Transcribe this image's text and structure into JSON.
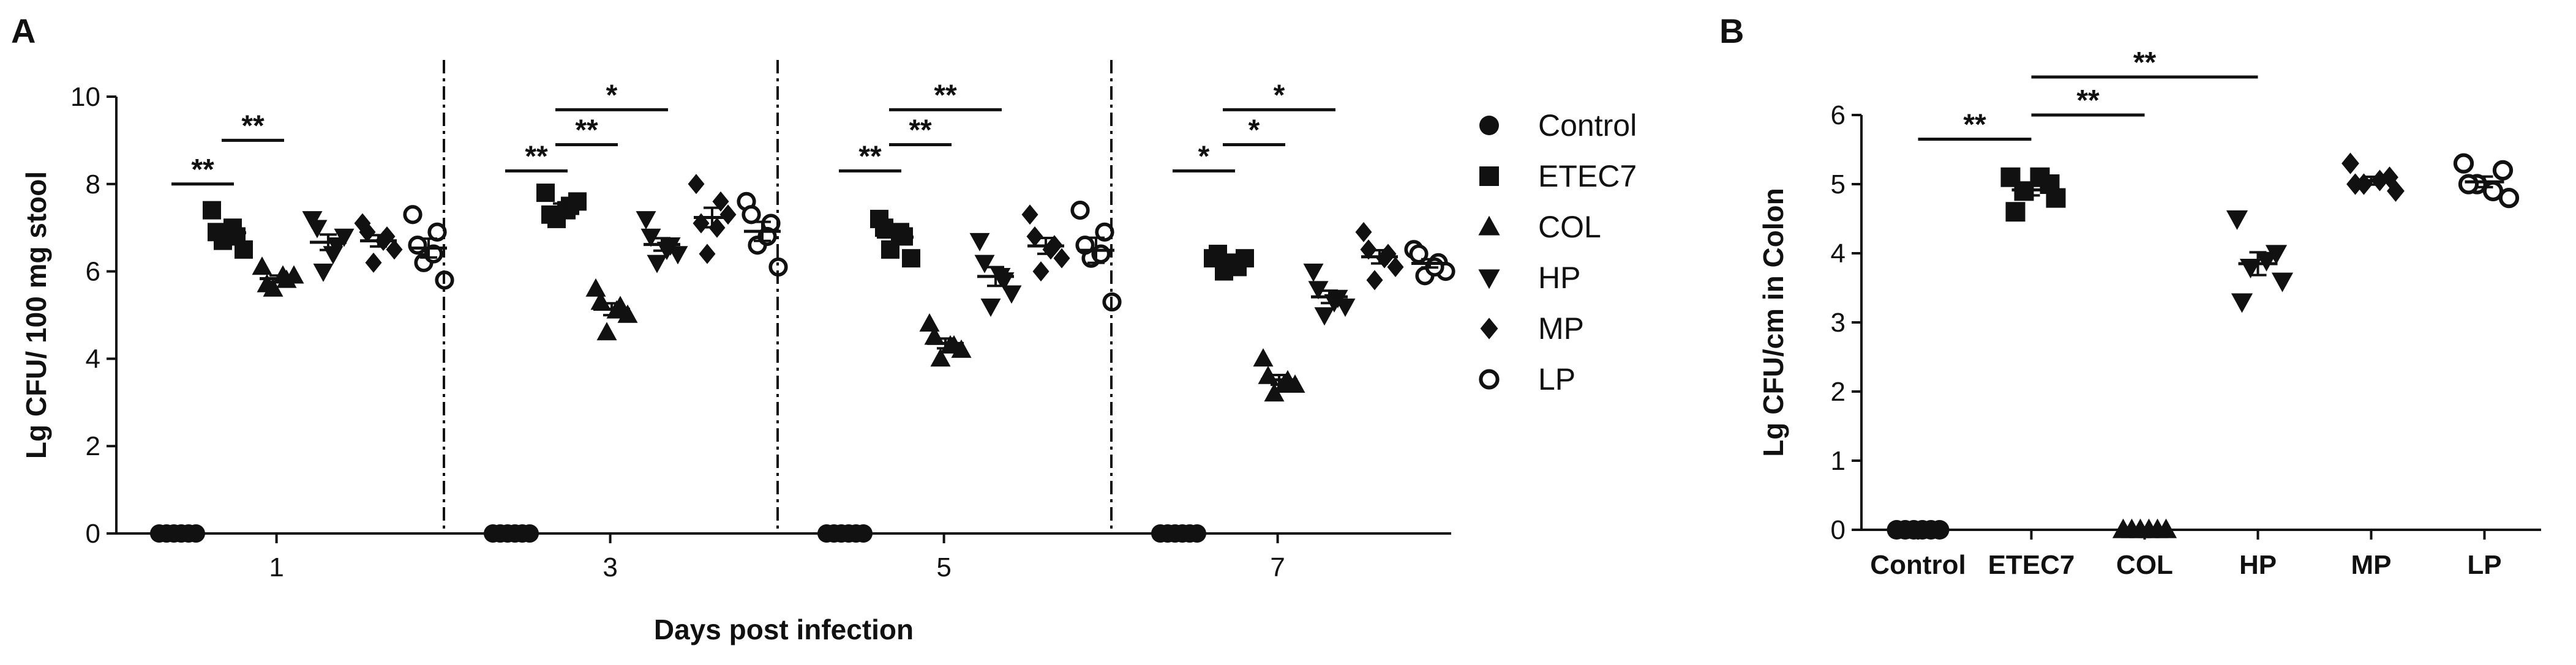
{
  "chart_data": [
    {
      "panel": "A",
      "type": "scatter",
      "xlabel": "Days post infection",
      "ylabel": "Lg CFU/ 100 mg stool",
      "ylim": [
        0,
        10
      ],
      "yticks": [
        0,
        2,
        4,
        6,
        8,
        10
      ],
      "categories": [
        "1",
        "3",
        "5",
        "7"
      ],
      "legend_position": "right",
      "series": [
        {
          "name": "Control",
          "marker": "circle-filled",
          "groups": [
            [
              0,
              0,
              0,
              0,
              0,
              0
            ],
            [
              0,
              0,
              0,
              0,
              0,
              0
            ],
            [
              0,
              0,
              0,
              0,
              0,
              0
            ],
            [
              0,
              0,
              0,
              0,
              0,
              0
            ]
          ]
        },
        {
          "name": "ETEC7",
          "marker": "square-filled",
          "groups": [
            [
              7.4,
              6.8,
              6.7,
              6.5,
              6.9,
              7.0
            ],
            [
              7.8,
              7.5,
              7.2,
              7.6,
              7.3,
              7.4
            ],
            [
              7.2,
              6.8,
              6.5,
              6.3,
              7.0,
              6.9
            ],
            [
              6.3,
              6.1,
              6.0,
              6.3,
              6.4,
              6.2
            ]
          ]
        },
        {
          "name": "COL",
          "marker": "triangle-up-filled",
          "groups": [
            [
              6.1,
              5.8,
              5.6,
              5.9,
              5.7,
              5.9
            ],
            [
              5.6,
              5.2,
              4.6,
              5.0,
              5.3,
              5.1
            ],
            [
              4.8,
              4.3,
              4.0,
              4.2,
              4.5,
              4.3
            ],
            [
              4.0,
              3.5,
              3.2,
              3.4,
              3.6,
              3.4
            ]
          ]
        },
        {
          "name": "HP",
          "marker": "triangle-down-filled",
          "groups": [
            [
              7.2,
              6.6,
              6.0,
              6.8,
              7.0,
              6.4
            ],
            [
              7.2,
              6.6,
              6.2,
              6.4,
              6.8,
              6.5
            ],
            [
              6.7,
              5.8,
              5.2,
              5.5,
              6.2,
              5.9
            ],
            [
              6.0,
              5.4,
              5.0,
              5.2,
              5.6,
              5.3
            ]
          ]
        },
        {
          "name": "MP",
          "marker": "diamond-filled",
          "groups": [
            [
              7.1,
              6.8,
              6.2,
              6.5,
              6.9,
              6.7
            ],
            [
              8.0,
              7.6,
              6.4,
              7.3,
              7.1,
              7.0
            ],
            [
              7.3,
              6.6,
              6.0,
              6.3,
              6.8,
              6.5
            ],
            [
              6.9,
              6.4,
              5.8,
              6.1,
              6.5,
              6.3
            ]
          ]
        },
        {
          "name": "LP",
          "marker": "circle-open",
          "groups": [
            [
              7.3,
              6.9,
              6.2,
              5.8,
              6.6,
              6.4
            ],
            [
              7.6,
              7.1,
              6.6,
              6.1,
              7.3,
              6.8
            ],
            [
              7.4,
              6.9,
              6.3,
              5.3,
              6.6,
              6.4
            ],
            [
              6.5,
              6.2,
              5.9,
              6.0,
              6.4,
              6.1
            ]
          ]
        }
      ],
      "significance": [
        {
          "day": "1",
          "from": "Control",
          "to": "ETEC7",
          "label": "**",
          "y": 8.0
        },
        {
          "day": "1",
          "from": "ETEC7",
          "to": "COL",
          "label": "**",
          "y": 9.0
        },
        {
          "day": "3",
          "from": "Control",
          "to": "ETEC7",
          "label": "**",
          "y": 8.3
        },
        {
          "day": "3",
          "from": "ETEC7",
          "to": "COL",
          "label": "**",
          "y": 8.9
        },
        {
          "day": "3",
          "from": "ETEC7",
          "to": "HP",
          "label": "*",
          "y": 9.7
        },
        {
          "day": "5",
          "from": "Control",
          "to": "ETEC7",
          "label": "**",
          "y": 8.3
        },
        {
          "day": "5",
          "from": "ETEC7",
          "to": "COL",
          "label": "**",
          "y": 8.9
        },
        {
          "day": "5",
          "from": "ETEC7",
          "to": "HP",
          "label": "**",
          "y": 9.7
        },
        {
          "day": "7",
          "from": "Control",
          "to": "ETEC7",
          "label": "*",
          "y": 8.3
        },
        {
          "day": "7",
          "from": "ETEC7",
          "to": "COL",
          "label": "*",
          "y": 8.9
        },
        {
          "day": "7",
          "from": "ETEC7",
          "to": "HP",
          "label": "*",
          "y": 9.7
        }
      ]
    },
    {
      "panel": "B",
      "type": "scatter",
      "xlabel": "",
      "ylabel": "Lg CFU/cm in Colon",
      "ylim": [
        0,
        6
      ],
      "yticks": [
        0,
        1,
        2,
        3,
        4,
        5,
        6
      ],
      "categories": [
        "Control",
        "ETEC7",
        "COL",
        "HP",
        "MP",
        "LP"
      ],
      "series": [
        {
          "name": "Control",
          "marker": "circle-filled",
          "values": [
            0,
            0,
            0,
            0,
            0,
            0
          ]
        },
        {
          "name": "ETEC7",
          "marker": "square-filled",
          "values": [
            5.1,
            5.0,
            4.9,
            4.8,
            4.6,
            5.1
          ]
        },
        {
          "name": "COL",
          "marker": "triangle-up-filled",
          "values": [
            0,
            0,
            0,
            0,
            0,
            0
          ]
        },
        {
          "name": "HP",
          "marker": "triangle-down-filled",
          "values": [
            4.5,
            4.0,
            3.8,
            3.6,
            3.3,
            3.9
          ]
        },
        {
          "name": "MP",
          "marker": "diamond-filled",
          "values": [
            5.3,
            5.1,
            5.0,
            4.9,
            5.0,
            5.0
          ]
        },
        {
          "name": "LP",
          "marker": "circle-open",
          "values": [
            5.3,
            5.2,
            5.0,
            4.8,
            5.0,
            4.9
          ]
        }
      ],
      "significance": [
        {
          "from": "Control",
          "to": "ETEC7",
          "label": "**",
          "y": 5.65
        },
        {
          "from": "ETEC7",
          "to": "COL",
          "label": "**",
          "y": 6.0
        },
        {
          "from": "ETEC7",
          "to": "HP",
          "label": "**",
          "y": 6.55
        }
      ]
    }
  ],
  "labels": {
    "panel_a": "A",
    "panel_b": "B"
  }
}
